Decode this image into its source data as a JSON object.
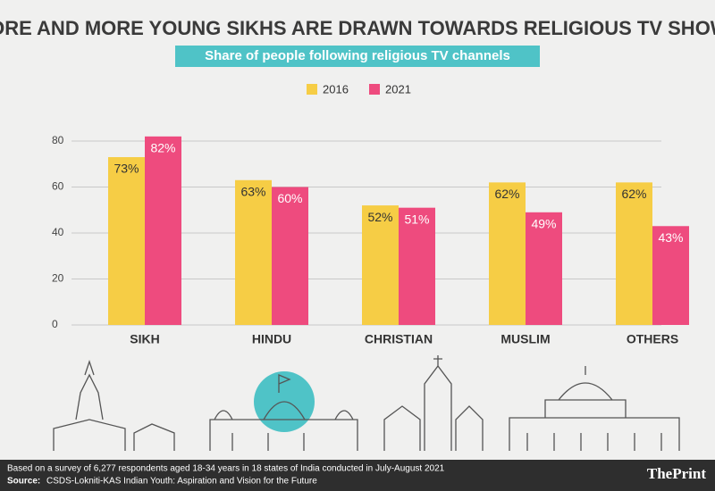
{
  "chart_data": {
    "type": "bar",
    "title": "MORE AND MORE YOUNG SIKHS ARE DRAWN TOWARDS RELIGIOUS TV SHOWS",
    "subtitle": "Share of people following religious TV channels",
    "categories": [
      "SIKH",
      "HINDU",
      "CHRISTIAN",
      "MUSLIM",
      "OTHERS"
    ],
    "series": [
      {
        "name": "2016",
        "color": "#f6cd45",
        "values": [
          73,
          63,
          52,
          62,
          62
        ],
        "value_labels": [
          "73%",
          "63%",
          "52%",
          "62%",
          "62%"
        ]
      },
      {
        "name": "2021",
        "color": "#ee4b7e",
        "values": [
          82,
          60,
          51,
          49,
          43
        ],
        "value_labels": [
          "82%",
          "60%",
          "51%",
          "49%",
          "43%"
        ]
      }
    ],
    "ylim": [
      0,
      80
    ],
    "yticks": [
      0,
      20,
      40,
      60,
      80
    ],
    "grid": true,
    "legend": "top",
    "note": "Based on a survey of 6,277 respondents aged 18-34 years in 18 states of India conducted in July-August 2021",
    "source_label": "Source:",
    "source": "CSDS-Lokniti-KAS Indian Youth: Aspiration and Vision for the Future",
    "brand": "ThePrint"
  }
}
